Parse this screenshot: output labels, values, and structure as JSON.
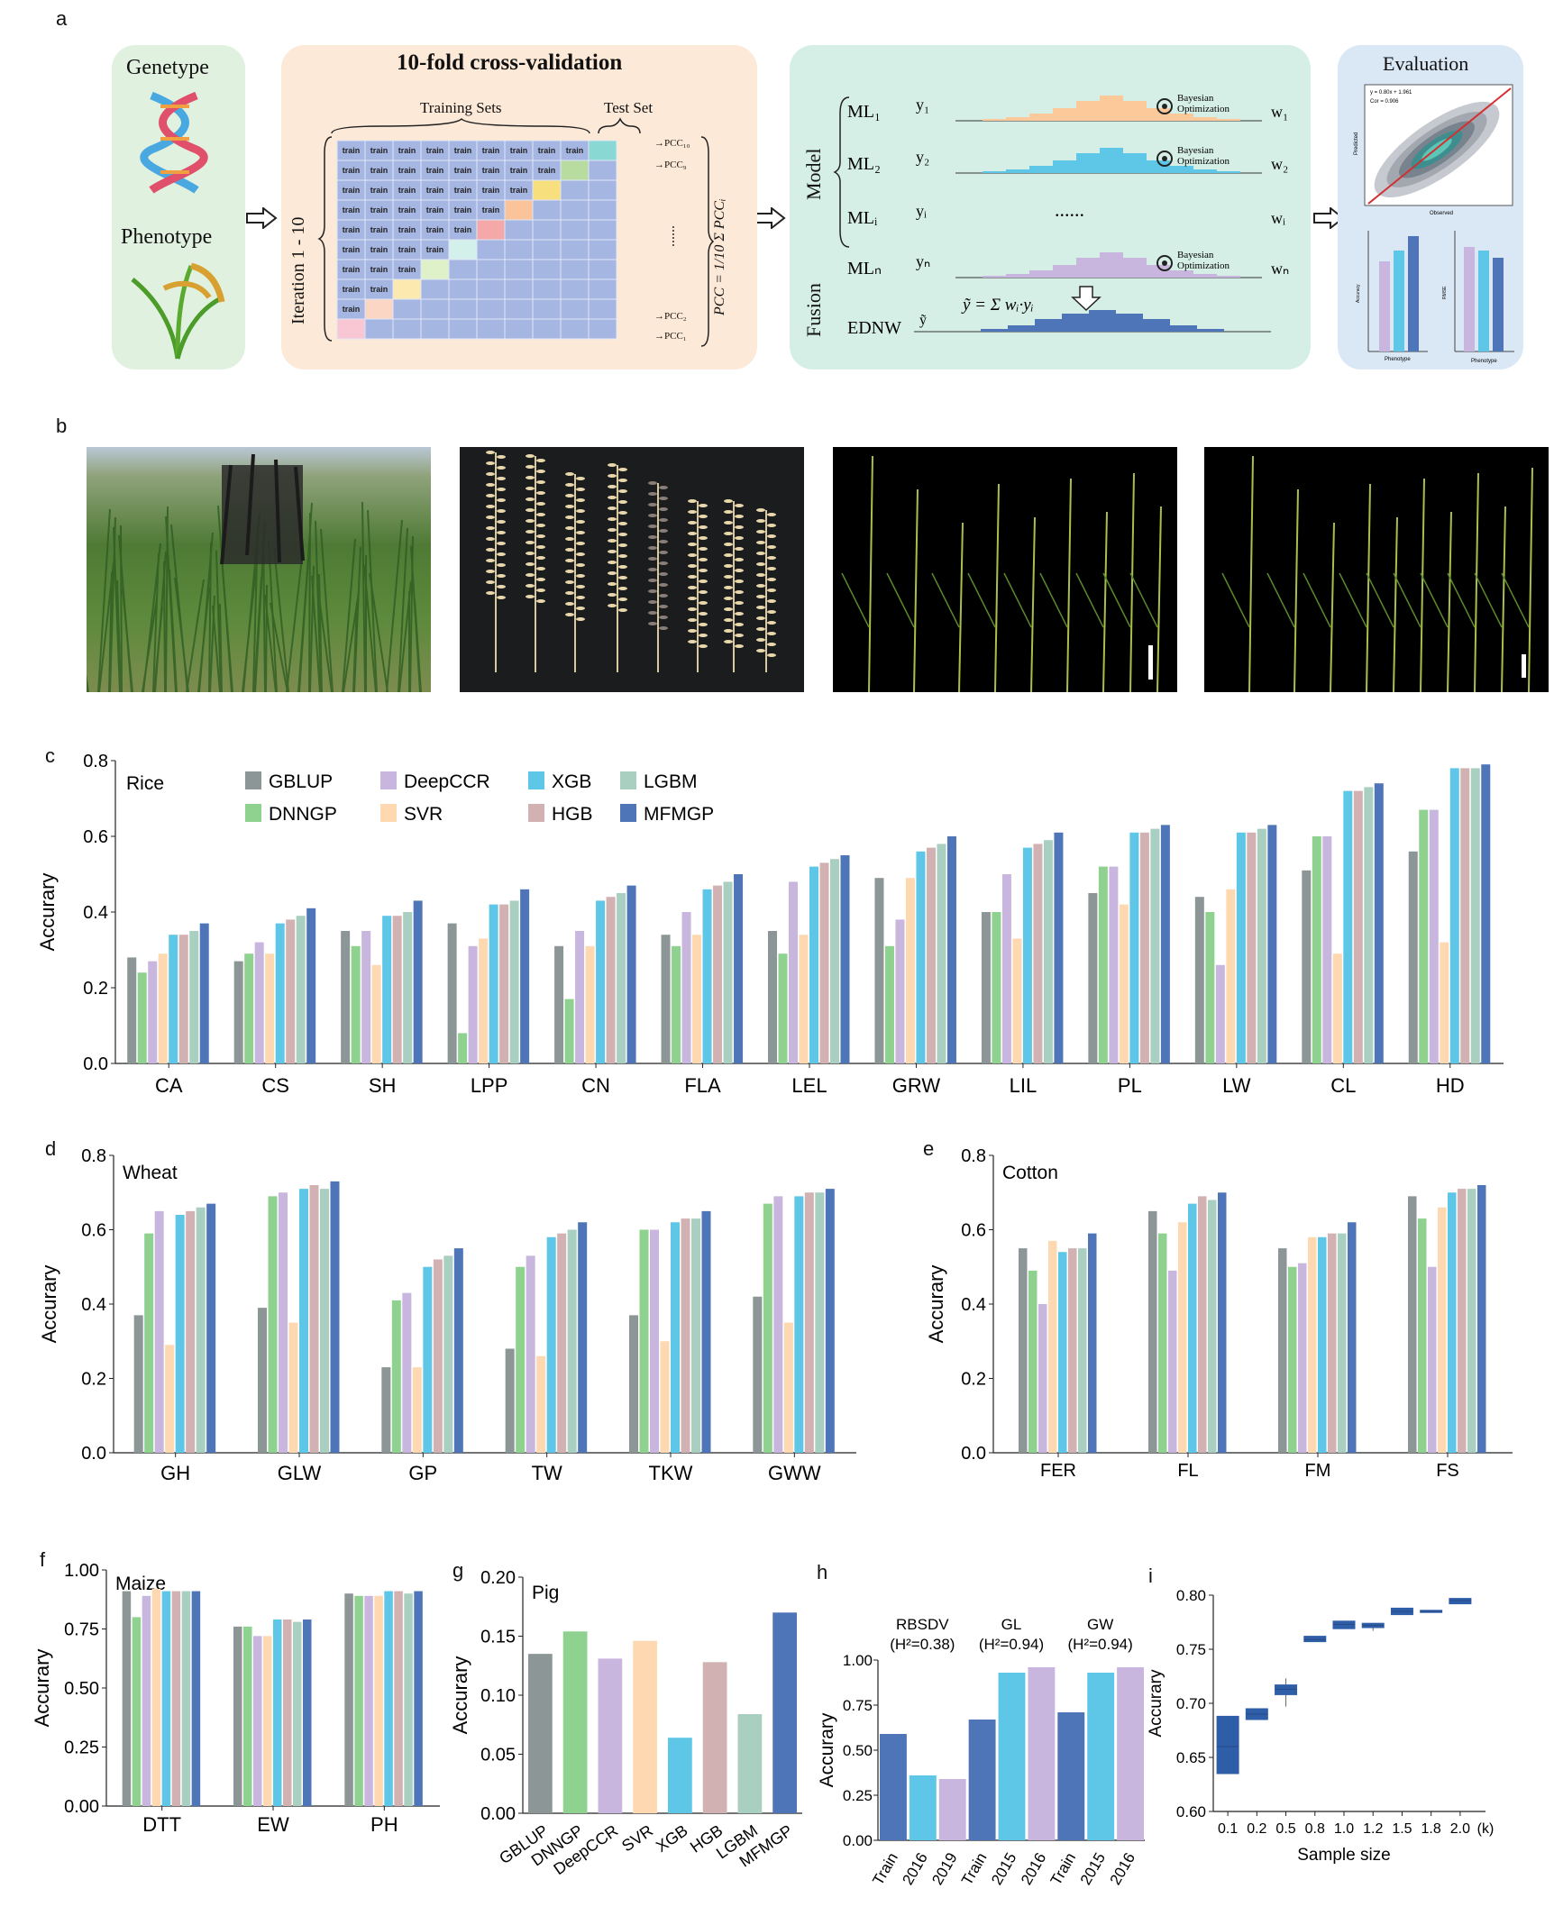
{
  "panel_labels": {
    "a": "a",
    "b": "b",
    "c": "c",
    "d": "d",
    "e": "e",
    "f": "f",
    "g": "g",
    "h": "h",
    "i": "i"
  },
  "workflow": {
    "input": {
      "genotype": "Genetype",
      "phenotype": "Phenotype"
    },
    "cv": {
      "title": "10-fold cross-validation",
      "training_sets": "Training Sets",
      "test_set": "Test Set",
      "iteration": "Iteration 1 - 10",
      "cell": "train",
      "pcc_labels": [
        "PCC₁₀",
        "PCC₉",
        "PCC₂",
        "PCC₁"
      ],
      "dots": "......",
      "formula": "PCC = 1/10 Σ PCCᵢ"
    },
    "model": {
      "model_label": "Model",
      "fusion_label": "Fusion",
      "rows": [
        {
          "ml": "ML₁",
          "y": "y₁",
          "w": "w₁",
          "opt": true
        },
        {
          "ml": "ML₂",
          "y": "y₂",
          "w": "w₂",
          "opt": true
        },
        {
          "ml": "MLᵢ",
          "y": "yᵢ",
          "w": "wᵢ",
          "opt": false
        },
        {
          "ml": "MLₙ",
          "y": "yₙ",
          "w": "wₙ",
          "opt": true
        }
      ],
      "bayes1": "Bayesian",
      "bayes2": "Optimization",
      "dots": "......",
      "fusion_formula": "ỹ = Σ wᵢ·yᵢ",
      "ednw": "EDNW",
      "ednw_y": "ỹ"
    },
    "evaluation": {
      "title": "Evaluation",
      "scatter_text1": "y = 0.80x + 1.961",
      "scatter_text2": "Cor = 0.906",
      "xlab": "Observed",
      "ylab": "Predicted",
      "bar1_xlab": "Phenotype",
      "bar1_ylab": "Accuracy",
      "bar2_xlab": "Phenotype",
      "bar2_ylab": "RMSE"
    }
  },
  "colors": {
    "GBLUP": "#8c9696",
    "DNNGP": "#8fd18f",
    "DeepCCR": "#c9b6df",
    "SVR": "#fdd8b0",
    "XGB": "#5ec6e6",
    "HGB": "#d1b1b1",
    "LGBM": "#a9cfc0",
    "MFMGP": "#4e75b8",
    "box_input": "#e1f1e0",
    "box_cv": "#fde9d7",
    "box_model": "#d6efe6",
    "box_eval": "#dae8f6",
    "grid_blue": "#a6b6e2"
  },
  "legend": [
    "GBLUP",
    "DNNGP",
    "DeepCCR",
    "SVR",
    "XGB",
    "HGB",
    "LGBM",
    "MFMGP"
  ],
  "chart_data": [
    {
      "panel": "c",
      "type": "bar",
      "title": "Rice",
      "ylabel": "Accurary",
      "ylim": [
        0,
        0.8
      ],
      "yticks": [
        "0.0",
        "0.2",
        "0.4",
        "0.6",
        "0.8"
      ],
      "categories": [
        "CA",
        "CS",
        "SH",
        "LPP",
        "CN",
        "FLA",
        "LEL",
        "GRW",
        "LIL",
        "PL",
        "LW",
        "CL",
        "HD"
      ],
      "series": [
        {
          "name": "GBLUP",
          "values": [
            0.28,
            0.27,
            0.35,
            0.37,
            0.31,
            0.34,
            0.35,
            0.49,
            0.4,
            0.45,
            0.44,
            0.51,
            0.56
          ]
        },
        {
          "name": "DNNGP",
          "values": [
            0.24,
            0.29,
            0.31,
            0.08,
            0.17,
            0.31,
            0.29,
            0.31,
            0.4,
            0.52,
            0.4,
            0.6,
            0.67
          ]
        },
        {
          "name": "DeepCCR",
          "values": [
            0.27,
            0.32,
            0.35,
            0.31,
            0.35,
            0.4,
            0.48,
            0.38,
            0.5,
            0.52,
            0.26,
            0.6,
            0.67
          ]
        },
        {
          "name": "SVR",
          "values": [
            0.29,
            0.29,
            0.26,
            0.33,
            0.31,
            0.34,
            0.34,
            0.49,
            0.33,
            0.42,
            0.46,
            0.29,
            0.32
          ]
        },
        {
          "name": "XGB",
          "values": [
            0.34,
            0.37,
            0.39,
            0.42,
            0.43,
            0.46,
            0.52,
            0.56,
            0.57,
            0.61,
            0.61,
            0.72,
            0.78
          ]
        },
        {
          "name": "HGB",
          "values": [
            0.34,
            0.38,
            0.39,
            0.42,
            0.44,
            0.47,
            0.53,
            0.57,
            0.58,
            0.61,
            0.61,
            0.72,
            0.78
          ]
        },
        {
          "name": "LGBM",
          "values": [
            0.35,
            0.39,
            0.4,
            0.43,
            0.45,
            0.48,
            0.54,
            0.58,
            0.59,
            0.62,
            0.62,
            0.73,
            0.78
          ]
        },
        {
          "name": "MFMGP",
          "values": [
            0.37,
            0.41,
            0.43,
            0.46,
            0.47,
            0.5,
            0.55,
            0.6,
            0.61,
            0.63,
            0.63,
            0.74,
            0.79
          ]
        }
      ]
    },
    {
      "panel": "d",
      "type": "bar",
      "title": "Wheat",
      "ylabel": "Accurary",
      "ylim": [
        0,
        0.8
      ],
      "yticks": [
        "0.0",
        "0.2",
        "0.4",
        "0.6",
        "0.8"
      ],
      "categories": [
        "GH",
        "GLW",
        "GP",
        "TW",
        "TKW",
        "GWW"
      ],
      "series": [
        {
          "name": "GBLUP",
          "values": [
            0.37,
            0.39,
            0.23,
            0.28,
            0.37,
            0.42
          ]
        },
        {
          "name": "DNNGP",
          "values": [
            0.59,
            0.69,
            0.41,
            0.5,
            0.6,
            0.67
          ]
        },
        {
          "name": "DeepCCR",
          "values": [
            0.65,
            0.7,
            0.43,
            0.53,
            0.6,
            0.69
          ]
        },
        {
          "name": "SVR",
          "values": [
            0.29,
            0.35,
            0.23,
            0.26,
            0.3,
            0.35
          ]
        },
        {
          "name": "XGB",
          "values": [
            0.64,
            0.71,
            0.5,
            0.58,
            0.62,
            0.69
          ]
        },
        {
          "name": "HGB",
          "values": [
            0.65,
            0.72,
            0.52,
            0.59,
            0.63,
            0.7
          ]
        },
        {
          "name": "LGBM",
          "values": [
            0.66,
            0.71,
            0.53,
            0.6,
            0.63,
            0.7
          ]
        },
        {
          "name": "MFMGP",
          "values": [
            0.67,
            0.73,
            0.55,
            0.62,
            0.65,
            0.71
          ]
        }
      ]
    },
    {
      "panel": "e",
      "type": "bar",
      "title": "Cotton",
      "ylabel": "Accurary",
      "ylim": [
        0,
        0.8
      ],
      "yticks": [
        "0.0",
        "0.2",
        "0.4",
        "0.6",
        "0.8"
      ],
      "categories": [
        "FER",
        "FL",
        "FM",
        "FS"
      ],
      "series": [
        {
          "name": "GBLUP",
          "values": [
            0.55,
            0.65,
            0.55,
            0.69
          ]
        },
        {
          "name": "DNNGP",
          "values": [
            0.49,
            0.59,
            0.5,
            0.63
          ]
        },
        {
          "name": "DeepCCR",
          "values": [
            0.4,
            0.49,
            0.51,
            0.5
          ]
        },
        {
          "name": "SVR",
          "values": [
            0.57,
            0.62,
            0.58,
            0.66
          ]
        },
        {
          "name": "XGB",
          "values": [
            0.54,
            0.67,
            0.58,
            0.7
          ]
        },
        {
          "name": "HGB",
          "values": [
            0.55,
            0.69,
            0.59,
            0.71
          ]
        },
        {
          "name": "LGBM",
          "values": [
            0.55,
            0.68,
            0.59,
            0.71
          ]
        },
        {
          "name": "MFMGP",
          "values": [
            0.59,
            0.7,
            0.62,
            0.72
          ]
        }
      ]
    },
    {
      "panel": "f",
      "type": "bar",
      "title": "Maize",
      "ylabel": "Accurary",
      "ylim": [
        0,
        1.0
      ],
      "yticks": [
        "0.00",
        "0.25",
        "0.50",
        "0.75",
        "1.00"
      ],
      "categories": [
        "DTT",
        "EW",
        "PH"
      ],
      "series": [
        {
          "name": "GBLUP",
          "values": [
            0.91,
            0.76,
            0.9
          ]
        },
        {
          "name": "DNNGP",
          "values": [
            0.8,
            0.76,
            0.89
          ]
        },
        {
          "name": "DeepCCR",
          "values": [
            0.89,
            0.72,
            0.89
          ]
        },
        {
          "name": "SVR",
          "values": [
            0.92,
            0.72,
            0.89
          ]
        },
        {
          "name": "XGB",
          "values": [
            0.91,
            0.79,
            0.91
          ]
        },
        {
          "name": "HGB",
          "values": [
            0.91,
            0.79,
            0.91
          ]
        },
        {
          "name": "LGBM",
          "values": [
            0.91,
            0.78,
            0.9
          ]
        },
        {
          "name": "MFMGP",
          "values": [
            0.91,
            0.79,
            0.91
          ]
        }
      ]
    },
    {
      "panel": "g",
      "type": "bar",
      "title": "Pig",
      "ylabel": "Accurary",
      "ylim": [
        0,
        0.2
      ],
      "yticks": [
        "0.00",
        "0.05",
        "0.10",
        "0.15",
        "0.20"
      ],
      "categories": [
        "GBLUP",
        "DNNGP",
        "DeepCCR",
        "SVR",
        "XGB",
        "HGB",
        "LGBM",
        "MFMGP"
      ],
      "values": [
        0.135,
        0.154,
        0.131,
        0.146,
        0.064,
        0.128,
        0.084,
        0.17
      ]
    },
    {
      "panel": "h",
      "type": "bar",
      "ylabel": "Accurary",
      "ylim": [
        0,
        1.0
      ],
      "yticks": [
        "0.00",
        "0.25",
        "0.50",
        "0.75",
        "1.00"
      ],
      "groups": [
        {
          "name": "RBSDV",
          "h2": "(H²=0.38)",
          "categories": [
            "Train",
            "2016",
            "2019"
          ],
          "values": [
            0.59,
            0.36,
            0.34
          ]
        },
        {
          "name": "GL",
          "h2": "(H²=0.94)",
          "categories": [
            "Train",
            "2015",
            "2016"
          ],
          "values": [
            0.67,
            0.93,
            0.96
          ]
        },
        {
          "name": "GW",
          "h2": "(H²=0.94)",
          "categories": [
            "Train",
            "2015",
            "2016"
          ],
          "values": [
            0.71,
            0.93,
            0.96
          ]
        }
      ]
    },
    {
      "panel": "i",
      "type": "box",
      "ylabel": "Accurary",
      "xlabel": "Sample size",
      "ylim": [
        0.6,
        0.8
      ],
      "yticks": [
        "0.60",
        "0.65",
        "0.70",
        "0.75",
        "0.80"
      ],
      "xunit": "(k)",
      "categories": [
        "0.1",
        "0.2",
        "0.5",
        "0.8",
        "1.0",
        "1.2",
        "1.5",
        "1.8",
        "2.0"
      ],
      "boxes": [
        {
          "q1": 0.635,
          "med": 0.66,
          "q3": 0.688,
          "min": 0.635,
          "max": 0.688
        },
        {
          "q1": 0.685,
          "med": 0.69,
          "q3": 0.695,
          "min": 0.685,
          "max": 0.695
        },
        {
          "q1": 0.708,
          "med": 0.713,
          "q3": 0.717,
          "min": 0.697,
          "max": 0.723
        },
        {
          "q1": 0.757,
          "med": 0.759,
          "q3": 0.762,
          "min": 0.757,
          "max": 0.762
        },
        {
          "q1": 0.769,
          "med": 0.773,
          "q3": 0.776,
          "min": 0.769,
          "max": 0.776
        },
        {
          "q1": 0.77,
          "med": 0.772,
          "q3": 0.774,
          "min": 0.767,
          "max": 0.774
        },
        {
          "q1": 0.782,
          "med": 0.785,
          "q3": 0.788,
          "min": 0.782,
          "max": 0.788
        },
        {
          "q1": 0.784,
          "med": 0.785,
          "q3": 0.786,
          "min": 0.784,
          "max": 0.786
        },
        {
          "q1": 0.792,
          "med": 0.795,
          "q3": 0.797,
          "min": 0.792,
          "max": 0.797
        }
      ]
    }
  ]
}
